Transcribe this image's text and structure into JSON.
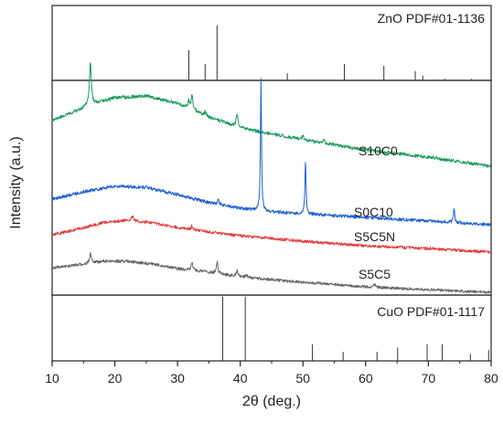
{
  "chart_data": {
    "type": "line",
    "xlabel": "2θ (deg.)",
    "ylabel": "Intensity (a.u.)",
    "xlim": [
      10,
      80
    ],
    "x_ticks": [
      10,
      20,
      30,
      40,
      50,
      60,
      70,
      80
    ],
    "grid": false,
    "panels": {
      "top": {
        "label": "ZnO PDF#01-1136",
        "type": "stick",
        "color": "#333333",
        "peaks": [
          {
            "x": 31.8,
            "h": 0.55
          },
          {
            "x": 34.4,
            "h": 0.3
          },
          {
            "x": 36.3,
            "h": 1.0
          },
          {
            "x": 47.5,
            "h": 0.13
          },
          {
            "x": 56.6,
            "h": 0.3
          },
          {
            "x": 62.9,
            "h": 0.27
          },
          {
            "x": 67.9,
            "h": 0.17
          },
          {
            "x": 69.1,
            "h": 0.09
          },
          {
            "x": 72.6,
            "h": 0.03
          },
          {
            "x": 76.9,
            "h": 0.03
          }
        ]
      },
      "main": {
        "series": [
          {
            "name": "S10C0",
            "color": "#1a9a5c",
            "baseline": [
              [
                10,
                132
              ],
              [
                13,
                124
              ],
              [
                16,
                115
              ],
              [
                20,
                107
              ],
              [
                25,
                105
              ],
              [
                30,
                113
              ],
              [
                35,
                128
              ],
              [
                40,
                140
              ],
              [
                50,
                153
              ],
              [
                60,
                164
              ],
              [
                70,
                172
              ],
              [
                80,
                182
              ]
            ],
            "peaks": [
              {
                "x": 16.1,
                "h": 47,
                "w": 0.35
              },
              {
                "x": 31.8,
                "h": 8,
                "w": 0.3
              },
              {
                "x": 32.3,
                "h": 16,
                "w": 0.3
              },
              {
                "x": 34.4,
                "h": 4,
                "w": 0.3
              },
              {
                "x": 39.5,
                "h": 14,
                "w": 0.35
              },
              {
                "x": 50.0,
                "h": 5,
                "w": 0.3
              },
              {
                "x": 53.3,
                "h": 4,
                "w": 0.3
              }
            ],
            "noise": 1.8
          },
          {
            "name": "S0C10",
            "color": "#1a5fd0",
            "baseline": [
              [
                10,
                218
              ],
              [
                15,
                210
              ],
              [
                20,
                204
              ],
              [
                25,
                205
              ],
              [
                30,
                213
              ],
              [
                35,
                222
              ],
              [
                40,
                228
              ],
              [
                45,
                232
              ],
              [
                55,
                236
              ],
              [
                65,
                240
              ],
              [
                75,
                244
              ],
              [
                80,
                246
              ]
            ],
            "peaks": [
              {
                "x": 36.5,
                "h": 6,
                "w": 0.3
              },
              {
                "x": 43.3,
                "h": 143,
                "w": 0.2
              },
              {
                "x": 50.4,
                "h": 57,
                "w": 0.22
              },
              {
                "x": 74.1,
                "h": 17,
                "w": 0.22
              }
            ],
            "noise": 1.8
          },
          {
            "name": "S5C5N",
            "color": "#e23b3b",
            "baseline": [
              [
                10,
                257
              ],
              [
                14,
                251
              ],
              [
                18,
                244
              ],
              [
                22,
                241
              ],
              [
                26,
                244
              ],
              [
                30,
                249
              ],
              [
                35,
                254
              ],
              [
                40,
                258
              ],
              [
                50,
                264
              ],
              [
                60,
                269
              ],
              [
                70,
                272
              ],
              [
                80,
                276
              ]
            ],
            "peaks": [
              {
                "x": 22.8,
                "h": 5,
                "w": 0.4
              },
              {
                "x": 32.3,
                "h": 4,
                "w": 0.3
              }
            ],
            "noise": 1.6
          },
          {
            "name": "S5C5",
            "color": "#666666",
            "baseline": [
              [
                10,
                293
              ],
              [
                14,
                290
              ],
              [
                18,
                286
              ],
              [
                22,
                286
              ],
              [
                26,
                289
              ],
              [
                30,
                294
              ],
              [
                35,
                298
              ],
              [
                40,
                303
              ],
              [
                50,
                309
              ],
              [
                60,
                314
              ],
              [
                70,
                317
              ],
              [
                80,
                320
              ]
            ],
            "peaks": [
              {
                "x": 16.1,
                "h": 10,
                "w": 0.35
              },
              {
                "x": 32.3,
                "h": 9,
                "w": 0.3
              },
              {
                "x": 36.3,
                "h": 13,
                "w": 0.3
              },
              {
                "x": 39.5,
                "h": 6,
                "w": 0.35
              },
              {
                "x": 41.0,
                "h": 3,
                "w": 0.3
              },
              {
                "x": 61.5,
                "h": 3,
                "w": 0.4
              }
            ],
            "noise": 1.6
          }
        ]
      },
      "bottom": {
        "label": "CuO PDF#01-1117",
        "type": "stick",
        "color": "#333333",
        "peaks": [
          {
            "x": 37.2,
            "h": 1.0
          },
          {
            "x": 40.8,
            "h": 1.0
          },
          {
            "x": 51.5,
            "h": 0.26
          },
          {
            "x": 56.4,
            "h": 0.14
          },
          {
            "x": 61.8,
            "h": 0.14
          },
          {
            "x": 65.1,
            "h": 0.21
          },
          {
            "x": 69.8,
            "h": 0.26
          },
          {
            "x": 72.2,
            "h": 0.26
          },
          {
            "x": 76.7,
            "h": 0.11
          },
          {
            "x": 79.6,
            "h": 0.17
          }
        ]
      }
    },
    "series_labels": [
      {
        "text": "S10C0",
        "x": 69
      },
      {
        "text": "S0C10",
        "x": 69
      },
      {
        "text": "S5C5N",
        "x": 69
      },
      {
        "text": "S5C5",
        "x": 69
      }
    ]
  }
}
